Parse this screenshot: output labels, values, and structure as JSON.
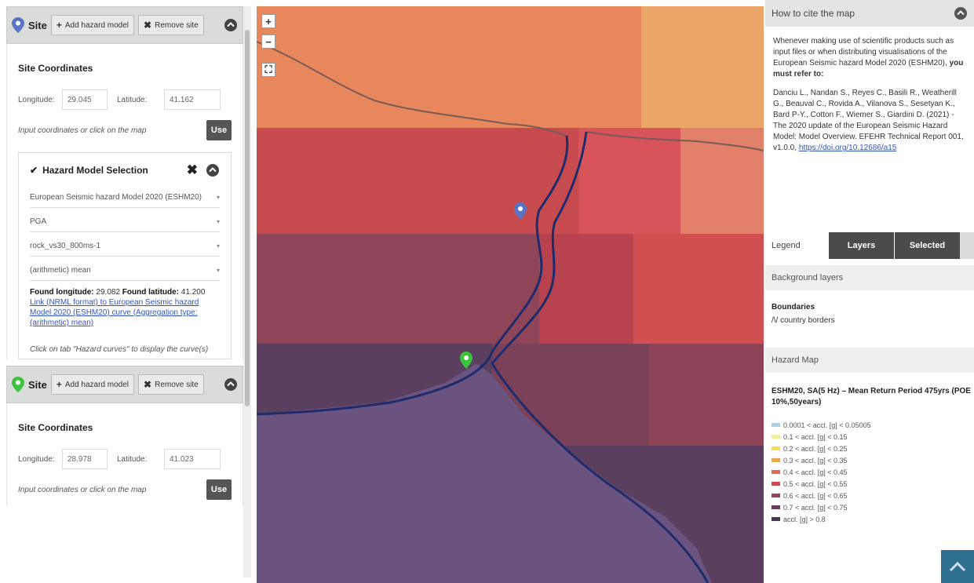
{
  "site1": {
    "label": "Site",
    "add_btn": "Add hazard model",
    "remove_btn": "Remove site",
    "coords_title": "Site Coordinates",
    "lon_label": "Longitude:",
    "lon_value": "29.045",
    "lat_label": "Latitude:",
    "lat_value": "41.162",
    "hint": "Input coordinates or click on the map",
    "use_btn": "Use"
  },
  "hazard": {
    "title": "Hazard Model Selection",
    "selects": [
      "European Seismic hazard Model 2020 (ESHM20)",
      "PGA",
      "rock_vs30_800ms-1",
      "(arithmetic) mean"
    ],
    "found_lon_label": "Found longitude:",
    "found_lon": "29.082",
    "found_lat_label": "Found latitude:",
    "found_lat": "41.200",
    "link": "Link (NRML format) to European Seismic hazard Model 2020 (ESHM20) curve (Aggregation type: (arithmetic) mean)",
    "curves_hint": "Click on tab \"Hazard curves\" to display the curve(s)"
  },
  "site2": {
    "label": "Site",
    "add_btn": "Add hazard model",
    "remove_btn": "Remove site",
    "coords_title": "Site Coordinates",
    "lon_label": "Longitude:",
    "lon_value": "28.978",
    "lat_label": "Latitude:",
    "lat_value": "41.023",
    "hint": "Input coordinates or click on the map",
    "use_btn": "Use"
  },
  "map": {
    "zoom_in": "+",
    "zoom_out": "−",
    "site1_color": "#5b73c4",
    "site2_color": "#3cc23c"
  },
  "cite": {
    "title": "How to cite the map",
    "intro": "Whenever making use of scientific products such as input files or when distributing visualisations of the European Seismic hazard Model 2020 (ESHM20),",
    "intro_bold": "you must refer to:",
    "reference": "Danciu L., Nandan S., Reyes C., Basili R., Weatherill G., Beauval C., Rovida A., Vilanova S., Sesetyan K., Bard P-Y., Cotton F., Wiemer S., Giardini D. (2021) - The 2020 update of the European Seismic Hazard Model: Model Overview. EFEHR Technical Report 001, v1.0.0,",
    "doi": "https://doi.org/10.12686/a15"
  },
  "tabs": {
    "legend": "Legend",
    "layers": "Layers",
    "selected": "Selected"
  },
  "background_layers": "Background layers",
  "boundaries": {
    "title": "Boundaries",
    "item": "/\\/ country borders"
  },
  "hazard_map": "Hazard Map",
  "legend": {
    "title": "ESHM20, SA(5 Hz) – Mean Return Period 475yrs (POE 10%,50years)",
    "items": [
      {
        "label": "0.0001 < accl. [g] < 0.05005",
        "color": "#a7d3ea"
      },
      {
        "label": "0.1 < accl. [g] < 0.15",
        "color": "#f4f09a"
      },
      {
        "label": "0.2 < accl. [g] < 0.25",
        "color": "#f7e04a"
      },
      {
        "label": "0.3 < accl. [g] < 0.35",
        "color": "#f0a64a"
      },
      {
        "label": "0.4 < accl. [g] < 0.45",
        "color": "#e86a4a"
      },
      {
        "label": "0.5 < accl. [g] < 0.55",
        "color": "#cf4a52"
      },
      {
        "label": "0.6 < accl. [g] < 0.65",
        "color": "#9a3f58"
      },
      {
        "label": "0.7 < accl. [g] < 0.75",
        "color": "#6a3a5e"
      },
      {
        "label": "accl. [g] > 0.8",
        "color": "#4b3657"
      }
    ]
  }
}
